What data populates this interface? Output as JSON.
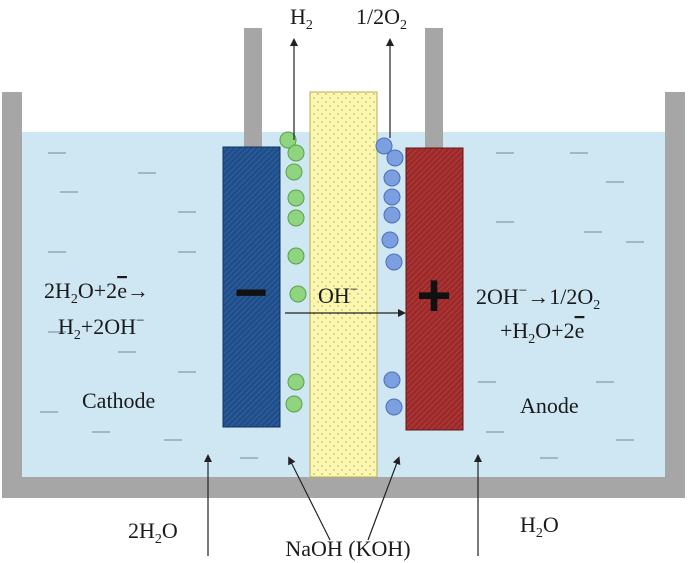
{
  "labels": {
    "h2_top": {
      "main": "H",
      "sub": "2"
    },
    "o2_top": {
      "pre": "1/2O",
      "sub": "2"
    },
    "cathode_reaction_1": {
      "a": "2H",
      "a_sub": "2",
      "b": "O+2",
      "e": "e",
      "c": "→"
    },
    "cathode_reaction_2": {
      "a": "H",
      "a_sub": "2",
      "b": "+2OH",
      "sup": "−"
    },
    "cathode": "Cathode",
    "anode": "Anode",
    "hydroxide": {
      "main": "OH",
      "sup": "−"
    },
    "anode_reaction_1": {
      "a": "2OH",
      "sup": "−",
      "b": "→1/2O",
      "b_sub": "2"
    },
    "anode_reaction_2": {
      "a": "+H",
      "a_sub": "2",
      "b": "O+2",
      "e": "e"
    },
    "water_left": {
      "a": "2H",
      "a_sub": "2",
      "b": "O"
    },
    "electrolyte": "NaOH (KOH)",
    "water_right": {
      "a": "H",
      "a_sub": "2",
      "b": "O"
    },
    "cathode_sign": "−",
    "anode_sign": "+"
  },
  "colors": {
    "container": "#a6a6a6",
    "electrolyte": "#cfe6f3",
    "cathode": "#1f4e8a",
    "anode": "#9c2a2a",
    "membrane": "#fbf6b0",
    "h2_bubble": "#8fd47e",
    "o2_bubble": "#7c9fe0"
  }
}
